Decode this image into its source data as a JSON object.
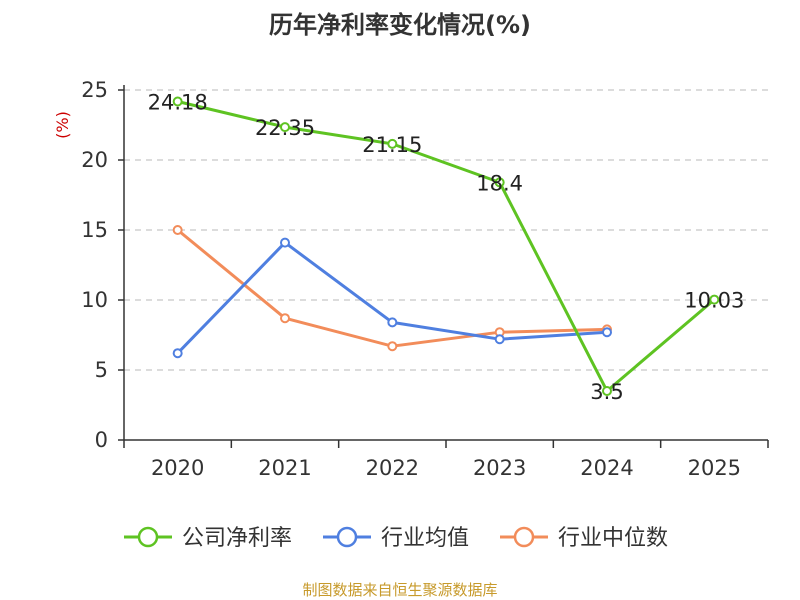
{
  "chart_data": {
    "type": "line",
    "title": "历年净利率变化情况(%)",
    "ylabel": "(%)",
    "xlabel": "",
    "categories": [
      "2020",
      "2021",
      "2022",
      "2023",
      "2024",
      "2025"
    ],
    "ylim": [
      0,
      25
    ],
    "yticks": [
      0,
      5,
      10,
      15,
      20,
      25
    ],
    "grid": "horizontal dashed",
    "legend_position": "bottom",
    "series": [
      {
        "name": "公司净利率",
        "color": "#5ec322",
        "values": [
          24.18,
          22.35,
          21.15,
          18.4,
          3.5,
          10.03
        ],
        "labels": [
          "24.18",
          "22.35",
          "21.15",
          "18.4",
          "3.5",
          "10.03"
        ]
      },
      {
        "name": "行业均值",
        "color": "#4f7fe0",
        "values": [
          6.2,
          14.1,
          8.4,
          7.2,
          7.7,
          null
        ]
      },
      {
        "name": "行业中位数",
        "color": "#f28c5a",
        "values": [
          15.0,
          8.7,
          6.7,
          7.7,
          7.9,
          null
        ]
      }
    ]
  },
  "source": "制图数据来自恒生聚源数据库"
}
